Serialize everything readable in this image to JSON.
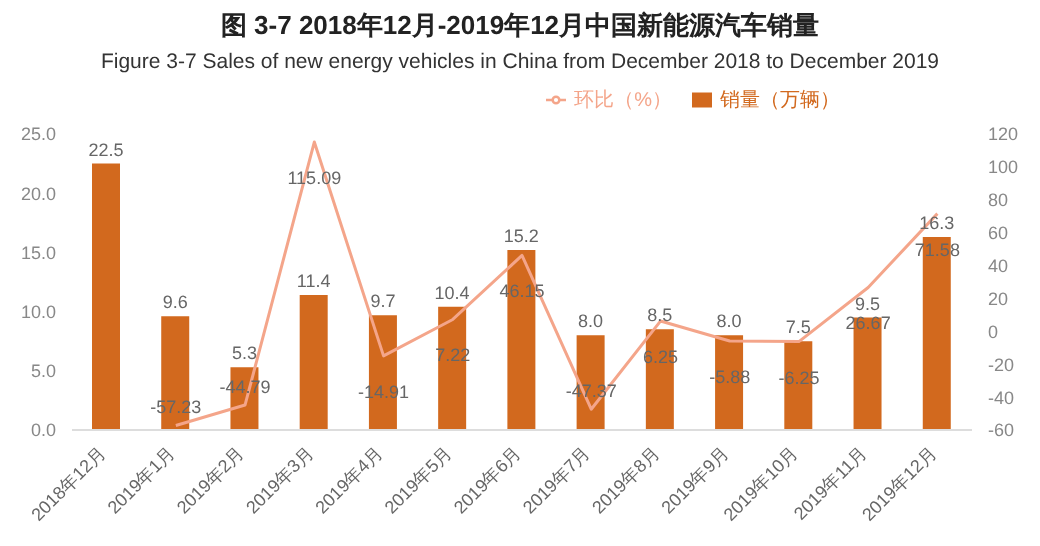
{
  "chart_data": {
    "type": "bar",
    "title": "图 3-7 2018年12月-2019年12月中国新能源汽车销量",
    "subtitle": "Figure 3-7 Sales of new energy vehicles in China from December 2018 to December 2019",
    "categories": [
      "2018年12月",
      "2019年1月",
      "2019年2月",
      "2019年3月",
      "2019年4月",
      "2019年5月",
      "2019年6月",
      "2019年7月",
      "2019年8月",
      "2019年9月",
      "2019年10月",
      "2019年11月",
      "2019年12月"
    ],
    "series": [
      {
        "name": "销量（万辆）",
        "color": "#d2691e",
        "values": [
          22.5,
          9.6,
          5.3,
          11.4,
          9.7,
          10.4,
          15.2,
          8.0,
          8.5,
          8.0,
          7.5,
          9.5,
          16.3
        ],
        "value_labels": [
          "22.5",
          "9.6",
          "5.3",
          "11.4",
          "9.7",
          "10.4",
          "15.2",
          "8.0",
          "8.5",
          "8.0",
          "7.5",
          "9.5",
          "16.3"
        ]
      },
      {
        "name": "环比（%）",
        "type": "line",
        "axis": "y2",
        "color": "#f4a58a",
        "values": [
          null,
          -57.23,
          -44.79,
          115.09,
          -14.91,
          7.22,
          46.15,
          -47.37,
          6.25,
          -5.88,
          -6.25,
          26.67,
          71.58
        ],
        "value_labels": [
          null,
          "-57.23",
          "-44.79",
          "115.09",
          "-14.91",
          "7.22",
          "46.15",
          "-47.37",
          "6.25",
          "-5.88",
          "-6.25",
          "26.67",
          "71.58"
        ]
      }
    ],
    "ylim": [
      0,
      25
    ],
    "yticks": [
      {
        "value": 0,
        "label": "0.0"
      },
      {
        "value": 5,
        "label": "5.0"
      },
      {
        "value": 10,
        "label": "10.0"
      },
      {
        "value": 15,
        "label": "15.0"
      },
      {
        "value": 20,
        "label": "20.0"
      },
      {
        "value": 25,
        "label": "25.0"
      }
    ],
    "y2lim": [
      -60,
      120
    ],
    "y2ticks": [
      -60,
      -40,
      -20,
      0,
      20,
      40,
      60,
      80,
      100,
      120
    ],
    "legend": "top right",
    "marker": "none"
  }
}
